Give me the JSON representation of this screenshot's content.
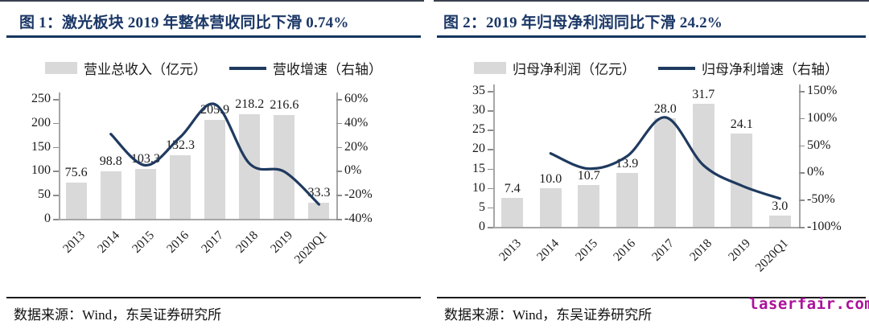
{
  "page": {
    "watermark": "laserfair.com",
    "colors": {
      "bar": "#d9d9d9",
      "line": "#1f3a5f",
      "title": "#1b3766",
      "watermark": "#ab119a"
    }
  },
  "figures": [
    {
      "title": "图 1：激光板块 2019 年整体营收同比下滑 0.74%",
      "source": "数据来源：Wind，东吴证券研究所",
      "legend": {
        "bar": "营业总收入（亿元）",
        "line": "营收增速（右轴）"
      },
      "chart_data": {
        "type": "bar",
        "categories": [
          "2013",
          "2014",
          "2015",
          "2016",
          "2017",
          "2018",
          "2019",
          "2020Q1"
        ],
        "series": [
          {
            "name": "营业总收入（亿元）",
            "kind": "bar",
            "axis": "left",
            "values": [
              75.6,
              98.8,
              103.3,
              132.3,
              205.9,
              218.2,
              216.6,
              33.3
            ]
          },
          {
            "name": "营收增速（右轴）",
            "kind": "line",
            "axis": "right",
            "unit": "%",
            "values": [
              null,
              30.7,
              4.6,
              28.1,
              55.6,
              6.0,
              -0.7,
              -28.0
            ]
          }
        ],
        "left_axis": {
          "min": 0,
          "max": 250,
          "ticks": [
            250,
            200,
            150,
            100,
            50,
            0
          ]
        },
        "right_axis": {
          "min": -40,
          "max": 60,
          "ticks": [
            "60%",
            "40%",
            "20%",
            "0%",
            "-20%",
            "-40%"
          ]
        },
        "grid": false,
        "legend_position": "top",
        "bar_label_decimals": 1
      }
    },
    {
      "title": "图 2：2019 年归母净利润同比下滑 24.2%",
      "source": "数据来源：Wind，东吴证券研究所",
      "legend": {
        "bar": "归母净利润（亿元）",
        "line": "归母净利增速（右轴）"
      },
      "chart_data": {
        "type": "bar",
        "categories": [
          "2013",
          "2014",
          "2015",
          "2016",
          "2017",
          "2018",
          "2019",
          "2020Q1"
        ],
        "series": [
          {
            "name": "归母净利润（亿元）",
            "kind": "bar",
            "axis": "left",
            "values": [
              7.4,
              10.0,
              10.7,
              13.9,
              28.0,
              31.7,
              24.1,
              3.0
            ]
          },
          {
            "name": "归母净利增速（右轴）",
            "kind": "line",
            "axis": "right",
            "unit": "%",
            "values": [
              null,
              35.1,
              7.0,
              29.9,
              101.4,
              13.2,
              -24.2,
              -48.0
            ]
          }
        ],
        "left_axis": {
          "min": 0,
          "max": 35,
          "ticks": [
            35,
            30,
            25,
            20,
            15,
            10,
            5,
            0
          ]
        },
        "right_axis": {
          "min": -100,
          "max": 150,
          "ticks": [
            "150%",
            "100%",
            "50%",
            "0%",
            "-50%",
            "-100%"
          ]
        },
        "grid": false,
        "legend_position": "top",
        "bar_label_decimals": 1
      }
    }
  ]
}
